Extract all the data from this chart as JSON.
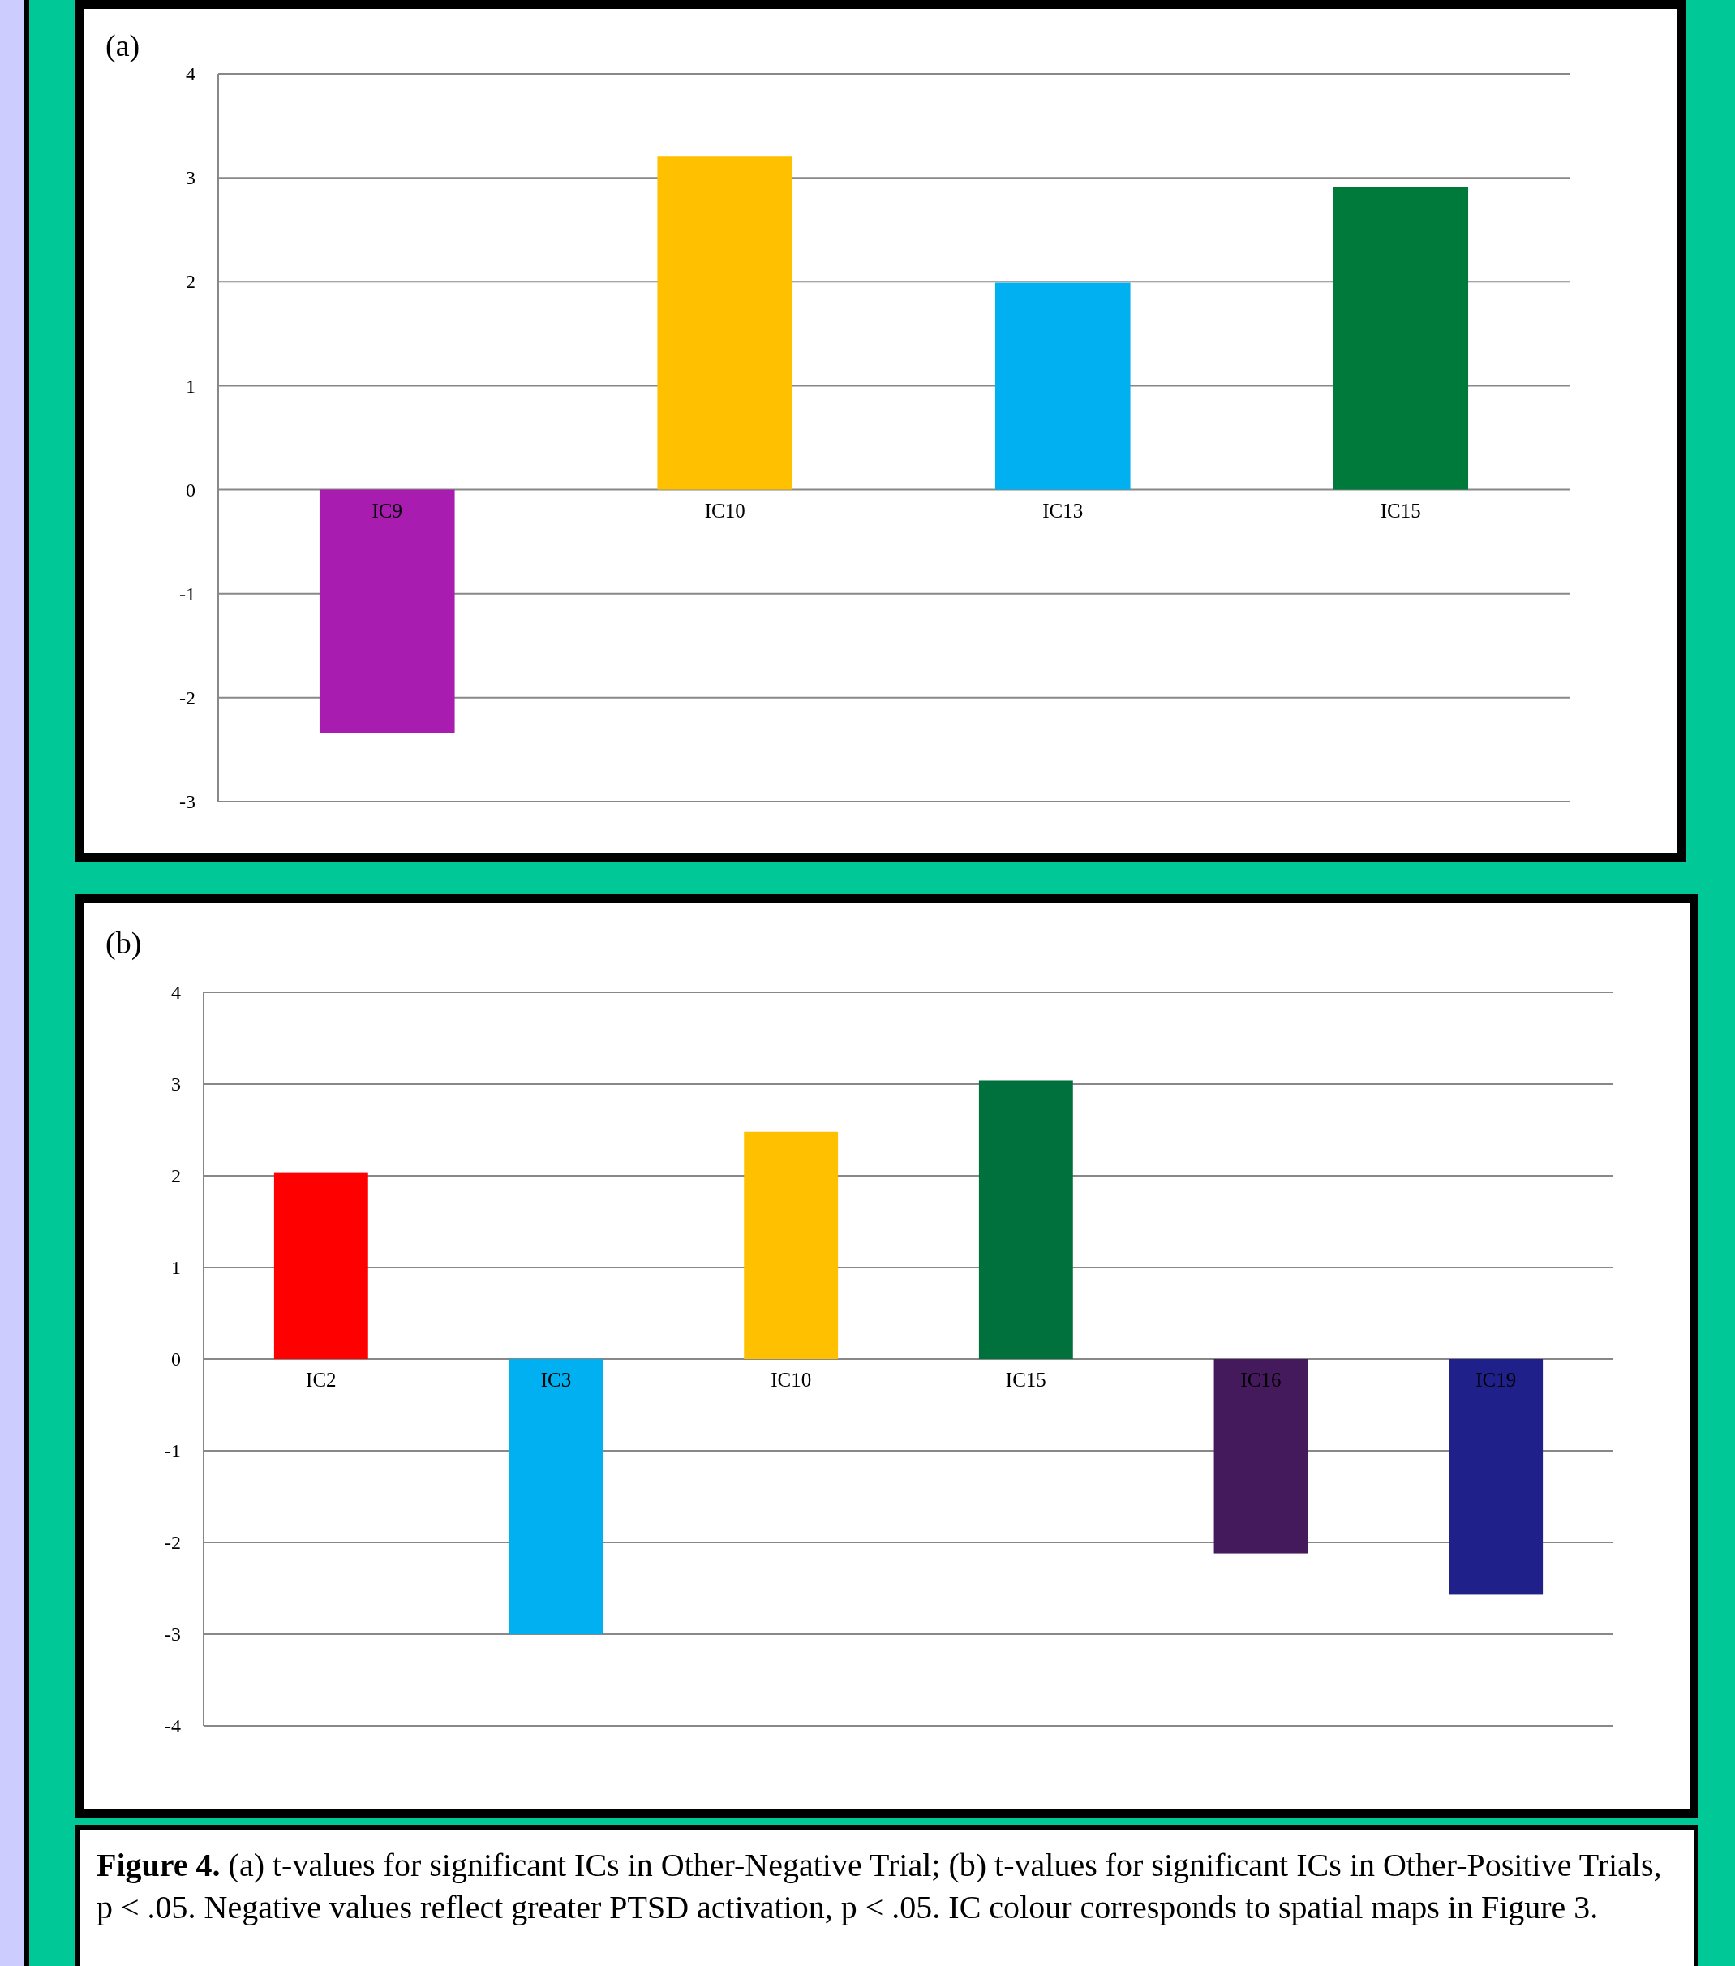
{
  "chart_data": [
    {
      "type": "bar",
      "title": "(a)",
      "categories": [
        "IC9",
        "IC10",
        "IC13",
        "IC15"
      ],
      "values": [
        -2.34,
        3.21,
        1.99,
        2.91
      ],
      "colors": [
        "#a81cb0",
        "#ffc000",
        "#00b0f0",
        "#007a3a"
      ],
      "ylim": [
        -3,
        4
      ],
      "yticks": [
        -3,
        -2,
        -1,
        0,
        1,
        2,
        3,
        4
      ],
      "grid": "y"
    },
    {
      "type": "bar",
      "title": "(b)",
      "categories": [
        "IC2",
        "IC3",
        "IC10",
        "IC15",
        "IC16",
        "IC19"
      ],
      "values": [
        2.03,
        -3.0,
        2.48,
        3.04,
        -2.12,
        -2.57
      ],
      "colors": [
        "#ff0000",
        "#00b0f0",
        "#ffc000",
        "#00703c",
        "#441a5c",
        "#20208a"
      ],
      "ylim": [
        -4,
        4
      ],
      "yticks": [
        -4,
        -3,
        -2,
        -1,
        0,
        1,
        2,
        3,
        4
      ],
      "grid": "y",
      "annotations": [
        "Figure 4.",
        "(a) t-values for significant ICs in Other-Negative Trial; (b) t-values for significant ICs in Other-Positive Trials, p < .05. Negative values reflect greater PTSD activation, p < .05. IC colour corresponds to spatial maps in Figure 3."
      ]
    }
  ]
}
